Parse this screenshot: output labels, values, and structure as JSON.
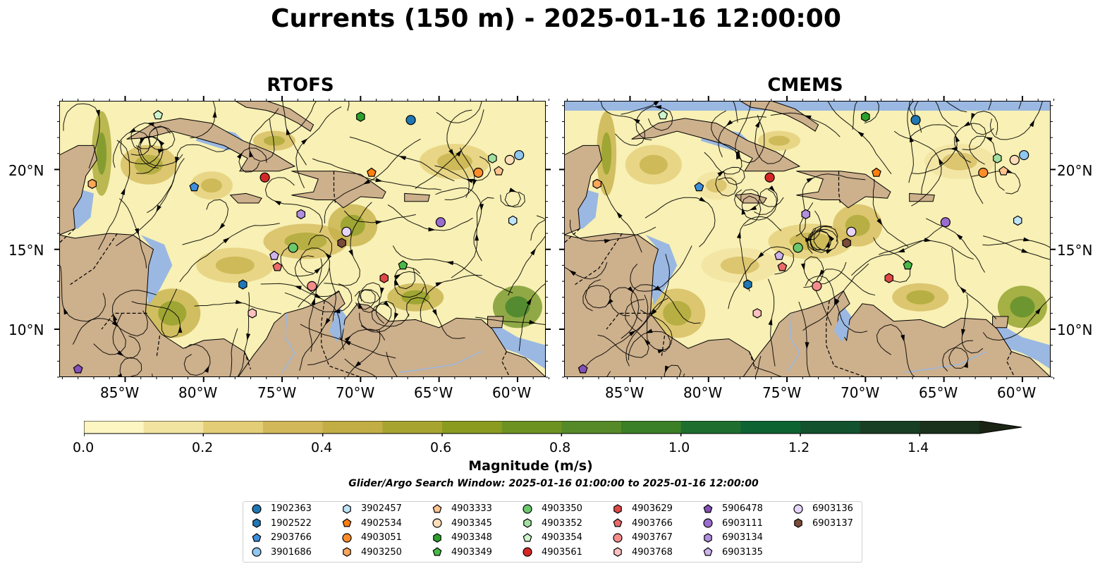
{
  "title": "Currents (150 m) - 2025-01-16 12:00:00",
  "panels": [
    {
      "title": "RTOFS"
    },
    {
      "title": "CMEMS"
    }
  ],
  "axes": {
    "lon_ticks": [
      "85°W",
      "80°W",
      "75°W",
      "70°W",
      "65°W",
      "60°W"
    ],
    "lat_ticks": [
      "20°N",
      "15°N",
      "10°N"
    ]
  },
  "colors": {
    "ocean_background": "#f8f0b4",
    "land": "#cdb08c",
    "shallow_water": "#9ab8e2",
    "streamline": "#000000"
  },
  "colorbar": {
    "label": "Magnitude (m/s)",
    "ticks": [
      "0.0",
      "0.2",
      "0.4",
      "0.6",
      "0.8",
      "1.0",
      "1.2",
      "1.4"
    ],
    "range": [
      0,
      1.5
    ],
    "extend": "max",
    "colors": [
      "#fdf5c2",
      "#f1e3a0",
      "#e3cd77",
      "#d3b85a",
      "#c3ae45",
      "#a7a530",
      "#8a9b20",
      "#6e9222",
      "#568a28",
      "#3b7f26",
      "#1e6f2f",
      "#0e6333",
      "#12522d",
      "#183f24",
      "#1a311c",
      "#1b2414"
    ]
  },
  "search_window": "Glider/Argo Search Window: 2025-01-16 01:00:00 to 2025-01-16 12:00:00",
  "legend": [
    {
      "id": "1902363",
      "marker": "circle",
      "color": "#1f77b4"
    },
    {
      "id": "1902522",
      "marker": "hexagon",
      "color": "#1f77b4"
    },
    {
      "id": "2903766",
      "marker": "pentagon",
      "color": "#3d8fdc"
    },
    {
      "id": "3901686",
      "marker": "circle",
      "color": "#8ec7f0"
    },
    {
      "id": "3902457",
      "marker": "hexagon",
      "color": "#bfe3f7"
    },
    {
      "id": "4902534",
      "marker": "pentagon",
      "color": "#ff7f0e"
    },
    {
      "id": "4903051",
      "marker": "circle",
      "color": "#ff8c2a"
    },
    {
      "id": "4903250",
      "marker": "hexagon",
      "color": "#ffa65a"
    },
    {
      "id": "4903333",
      "marker": "pentagon",
      "color": "#ffc48f"
    },
    {
      "id": "4903345",
      "marker": "circle",
      "color": "#ffddb8"
    },
    {
      "id": "4903348",
      "marker": "hexagon",
      "color": "#2ca02c"
    },
    {
      "id": "4903349",
      "marker": "pentagon",
      "color": "#48b848"
    },
    {
      "id": "4903350",
      "marker": "circle",
      "color": "#6cc86c"
    },
    {
      "id": "4903352",
      "marker": "hexagon",
      "color": "#a2e0a2"
    },
    {
      "id": "4903354",
      "marker": "pentagon",
      "color": "#ccf5cc"
    },
    {
      "id": "4903561",
      "marker": "circle",
      "color": "#d62728"
    },
    {
      "id": "4903629",
      "marker": "hexagon",
      "color": "#e04848"
    },
    {
      "id": "4903766",
      "marker": "pentagon",
      "color": "#ec6a6a"
    },
    {
      "id": "4903767",
      "marker": "circle",
      "color": "#f48c8c"
    },
    {
      "id": "4903768",
      "marker": "hexagon",
      "color": "#ffc0c0"
    },
    {
      "id": "5906478",
      "marker": "pentagon",
      "color": "#8451b8"
    },
    {
      "id": "6903111",
      "marker": "circle",
      "color": "#9a6ccf"
    },
    {
      "id": "6903134",
      "marker": "hexagon",
      "color": "#b08ee0"
    },
    {
      "id": "6903135",
      "marker": "pentagon",
      "color": "#cfb3ee"
    },
    {
      "id": "6903136",
      "marker": "circle",
      "color": "#e6d4fa"
    },
    {
      "id": "6903137",
      "marker": "hexagon",
      "color": "#7a4a3a"
    }
  ],
  "float_positions": [
    {
      "id": "1902363",
      "lon": -66.8,
      "lat": 23.1
    },
    {
      "id": "1902522",
      "lon": -77.5,
      "lat": 12.8
    },
    {
      "id": "2903766",
      "lon": -80.6,
      "lat": 18.9
    },
    {
      "id": "3901686",
      "lon": -59.9,
      "lat": 20.9
    },
    {
      "id": "3902457",
      "lon": -60.3,
      "lat": 16.8
    },
    {
      "id": "4902534",
      "lon": -69.3,
      "lat": 19.8
    },
    {
      "id": "4903051",
      "lon": -62.5,
      "lat": 19.8
    },
    {
      "id": "4903250",
      "lon": -87.1,
      "lat": 19.1
    },
    {
      "id": "4903333",
      "lon": -61.2,
      "lat": 19.9
    },
    {
      "id": "4903345",
      "lon": -60.5,
      "lat": 20.6
    },
    {
      "id": "4903348",
      "lon": -70.0,
      "lat": 23.3
    },
    {
      "id": "4903349",
      "lon": -67.3,
      "lat": 14.0
    },
    {
      "id": "4903350",
      "lon": -74.3,
      "lat": 15.1
    },
    {
      "id": "4903352",
      "lon": -61.6,
      "lat": 20.7
    },
    {
      "id": "4903354",
      "lon": -82.9,
      "lat": 23.4
    },
    {
      "id": "4903561",
      "lon": -76.1,
      "lat": 19.5
    },
    {
      "id": "4903629",
      "lon": -68.5,
      "lat": 13.2
    },
    {
      "id": "4903766",
      "lon": -75.3,
      "lat": 13.9
    },
    {
      "id": "4903767",
      "lon": -73.1,
      "lat": 12.7
    },
    {
      "id": "4903768",
      "lon": -76.9,
      "lat": 11.0
    },
    {
      "id": "5906478",
      "lon": -88.0,
      "lat": 7.5
    },
    {
      "id": "6903111",
      "lon": -64.9,
      "lat": 16.7
    },
    {
      "id": "6903134",
      "lon": -73.8,
      "lat": 17.2
    },
    {
      "id": "6903135",
      "lon": -75.5,
      "lat": 14.6
    },
    {
      "id": "6903136",
      "lon": -70.9,
      "lat": 16.1
    },
    {
      "id": "6903137",
      "lon": -71.2,
      "lat": 15.4
    }
  ]
}
